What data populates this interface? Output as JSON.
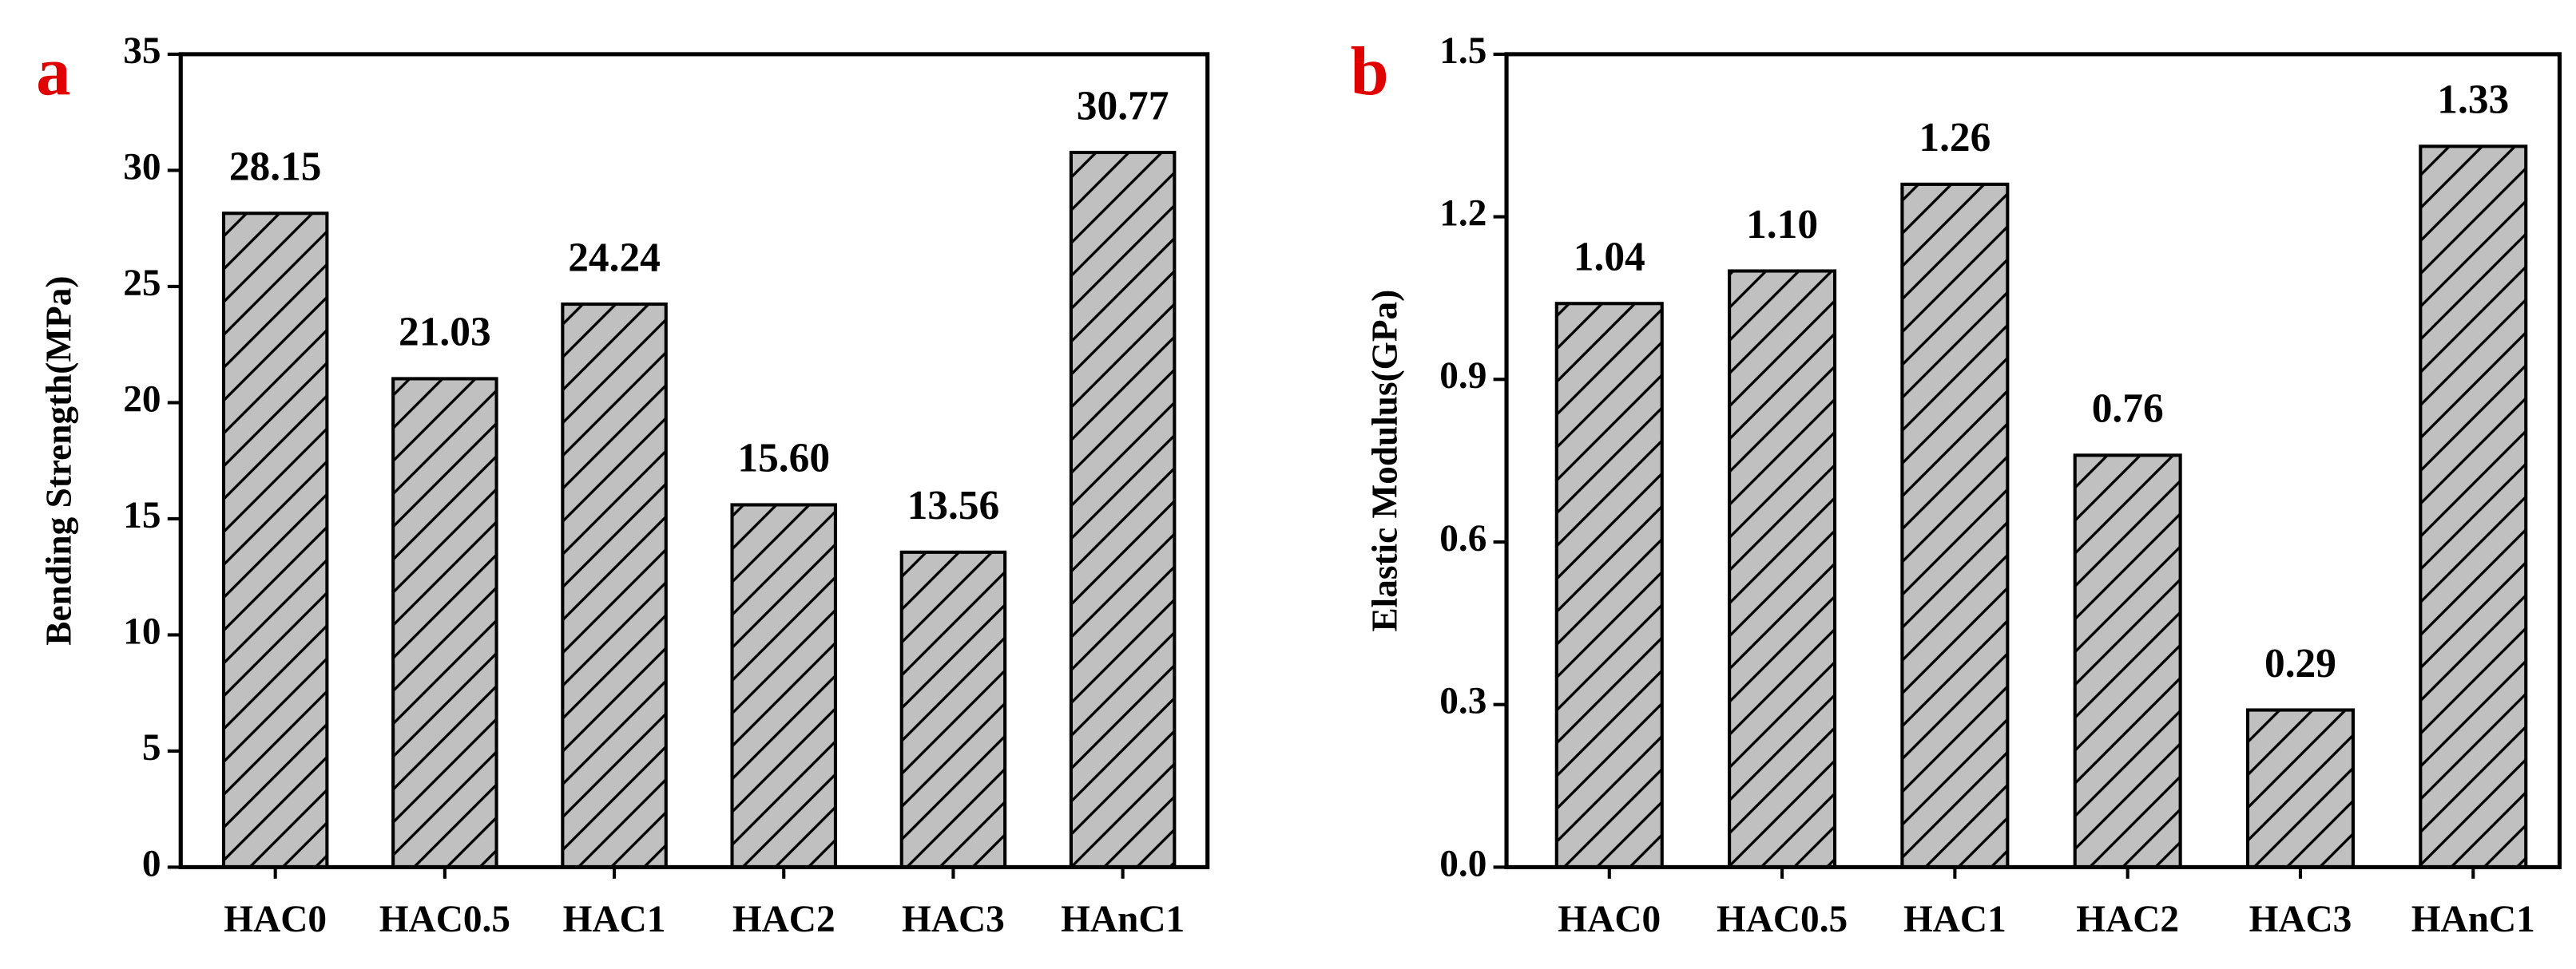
{
  "chart_data": [
    {
      "type": "bar",
      "label": "a",
      "y_label": "Bending Strength(MPa)",
      "categories": [
        "HAC0",
        "HAC0.5",
        "HAC1",
        "HAC2",
        "HAC3",
        "HAnC1"
      ],
      "values": [
        28.15,
        21.03,
        24.24,
        15.6,
        13.56,
        30.77
      ],
      "value_labels": [
        "28.15",
        "21.03",
        "24.24",
        "15.60",
        "13.56",
        "30.77"
      ],
      "color": "#c0c0c0",
      "hatch": "/",
      "ylim": [
        0,
        35
      ],
      "yticks": [
        0,
        5,
        10,
        15,
        20,
        25,
        30,
        35
      ]
    },
    {
      "type": "bar",
      "label": "b",
      "y_label": "Elastic Modulus(GPa)",
      "categories": [
        "HAC0",
        "HAC0.5",
        "HAC1",
        "HAC2",
        "HAC3",
        "HAnC1"
      ],
      "values": [
        1.04,
        1.1,
        1.26,
        0.76,
        0.29,
        1.33
      ],
      "value_labels": [
        "1.04",
        "1.10",
        "1.26",
        "0.76",
        "0.29",
        "1.33"
      ],
      "color": "#c0c0c0",
      "hatch": "/",
      "ylim": [
        0,
        1.5
      ],
      "yticks": [
        {
          "value": 0,
          "label": "0.0"
        },
        0.3,
        0.6,
        0.9,
        1.2,
        1.5
      ]
    }
  ]
}
